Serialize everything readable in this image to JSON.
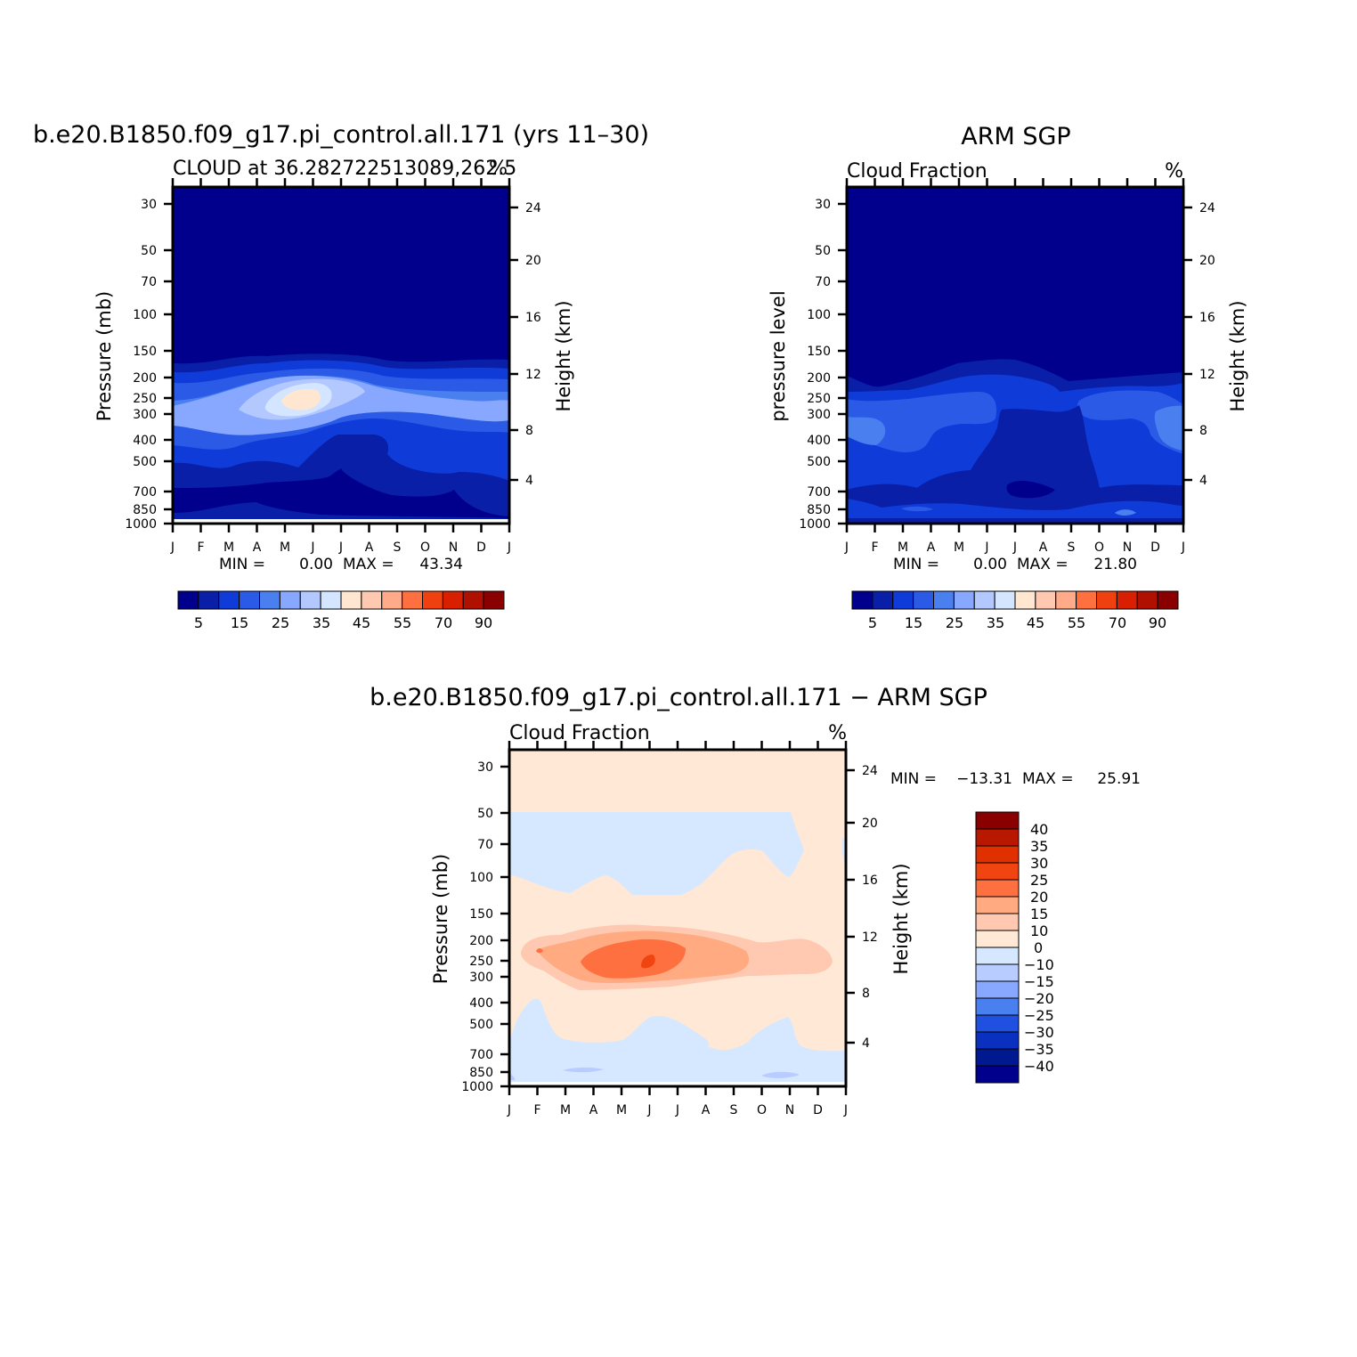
{
  "months": [
    "J",
    "F",
    "M",
    "A",
    "M",
    "J",
    "J",
    "A",
    "S",
    "O",
    "N",
    "D",
    "J"
  ],
  "pressure_ticks": [
    "30",
    "50",
    "70",
    "100",
    "150",
    "200",
    "250",
    "300",
    "400",
    "500",
    "700",
    "850",
    "1000"
  ],
  "height_ticks": [
    "24",
    "20",
    "16",
    "12",
    "8",
    "4"
  ],
  "percent_symbol": "%",
  "panels": {
    "model": {
      "title": "b.e20.B1850.f09_g17.pi_control.all.171 (yrs 11–30)",
      "subtitle": "CLOUD at 36.282722513089,262.5",
      "ylabel": "Pressure (mb)",
      "ylabel_right": "Height (km)",
      "stats": {
        "min_label": "MIN =",
        "min": "0.00",
        "max_label": "MAX =",
        "max": "43.34"
      }
    },
    "obs": {
      "title": "ARM SGP",
      "subtitle": "Cloud Fraction",
      "ylabel": "pressure level",
      "ylabel_right": "Height (km)",
      "stats": {
        "min_label": "MIN =",
        "min": "0.00",
        "max_label": "MAX =",
        "max": "21.80"
      }
    },
    "diff": {
      "title": "b.e20.B1850.f09_g17.pi_control.all.171 − ARM SGP",
      "subtitle": "Cloud Fraction",
      "ylabel": "Pressure (mb)",
      "ylabel_right": "Height (km)",
      "stats": {
        "min_label": "MIN =",
        "min": "−13.31",
        "max_label": "MAX =",
        "max": "25.91"
      }
    }
  },
  "colorbar_fraction": {
    "labels": [
      "5",
      "15",
      "25",
      "35",
      "45",
      "55",
      "70",
      "90"
    ],
    "colors": [
      "#00008c",
      "#0a1fa8",
      "#0f3bd9",
      "#2a5ae6",
      "#4a7ff0",
      "#88a8ff",
      "#b2c8ff",
      "#d4e6ff",
      "#ffe6d0",
      "#ffc8b0",
      "#ffaa88",
      "#ff7040",
      "#f04010",
      "#d82000",
      "#b01000",
      "#8a0000"
    ]
  },
  "colorbar_diff": {
    "labels": [
      "40",
      "35",
      "30",
      "25",
      "20",
      "15",
      "10",
      "0",
      "−10",
      "−15",
      "−20",
      "−25",
      "−30",
      "−35",
      "−40"
    ],
    "colors": [
      "#8a0000",
      "#b81800",
      "#e03000",
      "#f04510",
      "#ff7040",
      "#ffaa80",
      "#ffc8b0",
      "#ffe8d6",
      "#d6e8ff",
      "#b8ccff",
      "#88a8ff",
      "#4a7ff0",
      "#2050e0",
      "#0a30c0",
      "#001890",
      "#00008c"
    ]
  },
  "chart_data": [
    {
      "type": "heatmap",
      "title": "b.e20.B1850.f09_g17.pi_control.all.171 (yrs 11–30)",
      "subtitle": "CLOUD at 36.282722513089,262.5",
      "xlabel": "",
      "ylabel": "Pressure (mb)",
      "ylabel_right": "Height (km)",
      "units": "%",
      "x": [
        "J",
        "F",
        "M",
        "A",
        "M",
        "J",
        "J",
        "A",
        "S",
        "O",
        "N",
        "D",
        "J"
      ],
      "y_pressure": [
        30,
        50,
        70,
        100,
        150,
        200,
        250,
        300,
        400,
        500,
        700,
        850,
        1000
      ],
      "ylim": [
        1000,
        25
      ],
      "levels": [
        0,
        5,
        10,
        15,
        20,
        25,
        30,
        35,
        40,
        45,
        50,
        55,
        60,
        70,
        80,
        90
      ],
      "min": 0.0,
      "max": 43.34,
      "features": {
        "max_near": "June, 250 mb",
        "high_cloud_band": "150-500 mb"
      }
    },
    {
      "type": "heatmap",
      "title": "ARM SGP",
      "subtitle": "Cloud Fraction",
      "ylabel": "pressure level",
      "ylabel_right": "Height (km)",
      "units": "%",
      "x": [
        "J",
        "F",
        "M",
        "A",
        "M",
        "J",
        "J",
        "A",
        "S",
        "O",
        "N",
        "D",
        "J"
      ],
      "y_pressure": [
        30,
        50,
        70,
        100,
        150,
        200,
        250,
        300,
        400,
        500,
        700,
        850,
        1000
      ],
      "ylim": [
        1000,
        25
      ],
      "levels": [
        0,
        5,
        10,
        15,
        20,
        25,
        30,
        35,
        40,
        45,
        50,
        55,
        60,
        70,
        80,
        90
      ],
      "min": 0.0,
      "max": 21.8
    },
    {
      "type": "heatmap",
      "title": "b.e20.B1850.f09_g17.pi_control.all.171 − ARM SGP",
      "subtitle": "Cloud Fraction",
      "ylabel": "Pressure (mb)",
      "ylabel_right": "Height (km)",
      "units": "%",
      "x": [
        "J",
        "F",
        "M",
        "A",
        "M",
        "J",
        "J",
        "A",
        "S",
        "O",
        "N",
        "D",
        "J"
      ],
      "y_pressure": [
        30,
        50,
        70,
        100,
        150,
        200,
        250,
        300,
        400,
        500,
        700,
        850,
        1000
      ],
      "ylim": [
        1000,
        25
      ],
      "levels": [
        -40,
        -35,
        -30,
        -25,
        -20,
        -15,
        -10,
        0,
        10,
        15,
        20,
        25,
        30,
        35,
        40
      ],
      "min": -13.31,
      "max": 25.91,
      "features": {
        "max_near": "June, 250 mb"
      }
    }
  ]
}
